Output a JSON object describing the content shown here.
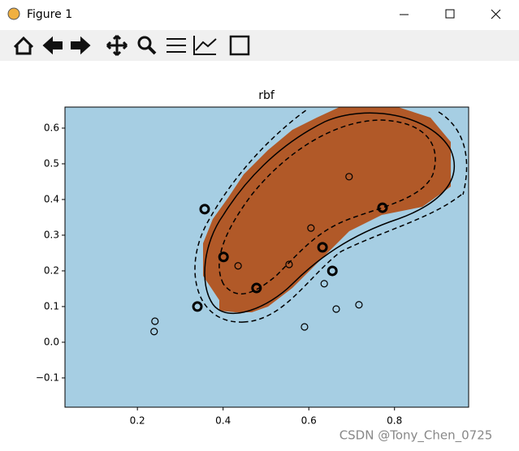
{
  "window": {
    "title": "Figure 1"
  },
  "watermark": "CSDN @Tony_Chen_0725",
  "chart_data": {
    "type": "scatter",
    "title": "rbf",
    "xlim": [
      0.031,
      0.973
    ],
    "ylim": [
      -0.182,
      0.659
    ],
    "xticks": [
      0.2,
      0.4,
      0.6,
      0.8
    ],
    "yticks": [
      {
        "value": -0.1,
        "label": "−0.1"
      },
      {
        "value": 0,
        "label": "0.0"
      },
      0.1,
      0.2,
      0.3,
      0.4,
      0.5,
      0.6
    ],
    "series": [
      {
        "color": "#000000",
        "x": [
          0.357,
          0.401,
          0.34,
          0.478,
          0.632,
          0.655,
          0.772
        ],
        "values": [
          0.373,
          0.239,
          0.1,
          0.152,
          0.266,
          0.2,
          0.377
        ]
      },
      {
        "color": "#000000",
        "x": [
          0.241,
          0.239,
          0.435,
          0.554,
          0.605,
          0.694,
          0.636,
          0.664,
          0.59,
          0.717
        ],
        "values": [
          0.059,
          0.03,
          0.214,
          0.218,
          0.32,
          0.464,
          0.164,
          0.093,
          0.043,
          0.105
        ]
      }
    ]
  }
}
